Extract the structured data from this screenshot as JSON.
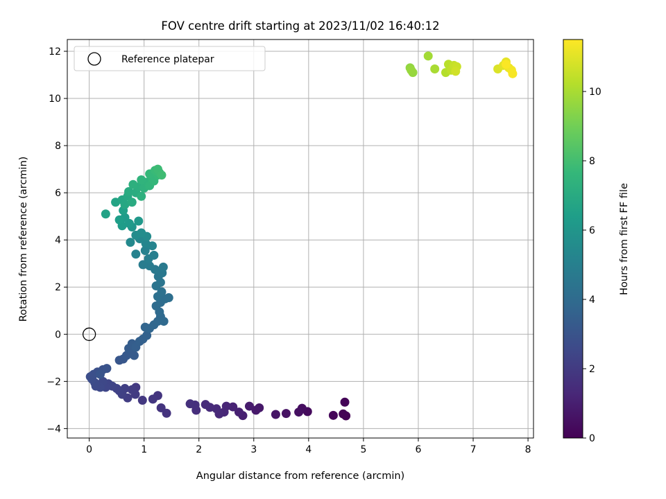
{
  "chart_data": {
    "type": "scatter",
    "title": "FOV centre drift starting at 2023/11/02 16:40:12",
    "xlabel": "Angular distance from reference (arcmin)",
    "ylabel": "Rotation from reference (arcmin)",
    "xlim": [
      -0.4,
      8.1
    ],
    "ylim": [
      -4.4,
      12.5
    ],
    "x_ticks": [
      0,
      1,
      2,
      3,
      4,
      5,
      6,
      7,
      8
    ],
    "y_ticks": [
      -4,
      -2,
      0,
      2,
      4,
      6,
      8,
      10,
      12
    ],
    "grid": true,
    "legend": {
      "location": "upper-left",
      "entries": [
        "Reference platepar"
      ]
    },
    "reference_point": {
      "x": 0,
      "y": 0
    },
    "colorbar": {
      "label": "Hours from first FF file",
      "colormap": "viridis",
      "range": [
        0,
        11.5
      ],
      "ticks": [
        0,
        2,
        4,
        6,
        8,
        10
      ]
    },
    "colormap_stops": [
      "#440154",
      "#482878",
      "#3e4989",
      "#31688e",
      "#26828e",
      "#1f9e89",
      "#35b779",
      "#6ece58",
      "#b5de2b",
      "#fde725"
    ],
    "points": [
      [
        4.68,
        -3.46,
        0.0
      ],
      [
        4.63,
        -3.38,
        0.05
      ],
      [
        4.66,
        -2.88,
        0.1
      ],
      [
        4.45,
        -3.44,
        0.18
      ],
      [
        3.98,
        -3.28,
        0.3
      ],
      [
        3.88,
        -3.14,
        0.38
      ],
      [
        3.82,
        -3.3,
        0.45
      ],
      [
        3.59,
        -3.36,
        0.55
      ],
      [
        3.4,
        -3.4,
        0.65
      ],
      [
        3.1,
        -3.12,
        0.75
      ],
      [
        3.04,
        -3.22,
        0.82
      ],
      [
        2.92,
        -3.05,
        0.9
      ],
      [
        2.8,
        -3.45,
        1.0
      ],
      [
        2.73,
        -3.3,
        1.05
      ],
      [
        2.62,
        -3.08,
        1.12
      ],
      [
        2.5,
        -3.05,
        1.2
      ],
      [
        2.46,
        -3.3,
        1.25
      ],
      [
        2.37,
        -3.38,
        1.3
      ],
      [
        2.32,
        -3.16,
        1.35
      ],
      [
        2.2,
        -3.1,
        1.4
      ],
      [
        2.12,
        -2.98,
        1.45
      ],
      [
        1.95,
        -3.22,
        1.5
      ],
      [
        1.93,
        -3.0,
        1.55
      ],
      [
        1.84,
        -2.95,
        1.6
      ],
      [
        1.41,
        -3.35,
        1.7
      ],
      [
        1.31,
        -3.12,
        1.75
      ],
      [
        1.25,
        -2.6,
        1.8
      ],
      [
        1.16,
        -2.75,
        1.85
      ],
      [
        0.97,
        -2.8,
        1.9
      ],
      [
        0.85,
        -2.25,
        1.95
      ],
      [
        0.84,
        -2.55,
        2.0
      ],
      [
        0.78,
        -2.35,
        2.05
      ],
      [
        0.7,
        -2.7,
        2.1
      ],
      [
        0.65,
        -2.3,
        2.15
      ],
      [
        0.6,
        -2.55,
        2.2
      ],
      [
        0.55,
        -2.4,
        2.25
      ],
      [
        0.5,
        -2.3,
        2.3
      ],
      [
        0.42,
        -2.2,
        2.35
      ],
      [
        0.35,
        -2.1,
        2.4
      ],
      [
        0.3,
        -2.25,
        2.45
      ],
      [
        0.25,
        -2.0,
        2.5
      ],
      [
        0.2,
        -2.25,
        2.55
      ],
      [
        0.12,
        -2.2,
        2.6
      ],
      [
        0.1,
        -2.05,
        2.65
      ],
      [
        0.05,
        -1.9,
        2.7
      ],
      [
        0.02,
        -1.8,
        2.75
      ],
      [
        0.08,
        -1.7,
        2.8
      ],
      [
        0.15,
        -1.6,
        2.85
      ],
      [
        0.25,
        -1.5,
        2.9
      ],
      [
        0.32,
        -1.45,
        2.95
      ],
      [
        0.2,
        -1.7,
        3.0
      ],
      [
        0.55,
        -1.1,
        3.1
      ],
      [
        0.62,
        -1.05,
        3.15
      ],
      [
        0.68,
        -0.9,
        3.2
      ],
      [
        0.75,
        -0.75,
        3.25
      ],
      [
        0.82,
        -0.9,
        3.3
      ],
      [
        0.72,
        -0.6,
        3.35
      ],
      [
        0.78,
        -0.4,
        3.4
      ],
      [
        0.85,
        -0.55,
        3.45
      ],
      [
        0.92,
        -0.3,
        3.5
      ],
      [
        0.98,
        -0.2,
        3.55
      ],
      [
        1.05,
        -0.05,
        3.6
      ],
      [
        1.02,
        0.3,
        3.7
      ],
      [
        1.1,
        0.25,
        3.75
      ],
      [
        1.18,
        0.4,
        3.8
      ],
      [
        1.25,
        0.55,
        3.85
      ],
      [
        1.3,
        0.75,
        3.9
      ],
      [
        1.36,
        0.55,
        3.95
      ],
      [
        1.28,
        0.95,
        4.0
      ],
      [
        1.22,
        1.2,
        4.05
      ],
      [
        1.3,
        1.35,
        4.1
      ],
      [
        1.38,
        1.5,
        4.15
      ],
      [
        1.45,
        1.55,
        4.2
      ],
      [
        1.25,
        1.6,
        4.25
      ],
      [
        1.32,
        1.8,
        4.3
      ],
      [
        1.22,
        2.05,
        4.4
      ],
      [
        1.3,
        2.2,
        4.45
      ],
      [
        1.26,
        2.45,
        4.5
      ],
      [
        1.33,
        2.6,
        4.6
      ],
      [
        1.2,
        2.75,
        4.65
      ],
      [
        1.35,
        2.85,
        4.7
      ],
      [
        1.1,
        2.9,
        4.75
      ],
      [
        0.98,
        2.95,
        4.8
      ],
      [
        1.08,
        3.2,
        4.9
      ],
      [
        1.18,
        3.35,
        4.95
      ],
      [
        1.02,
        3.55,
        5.05
      ],
      [
        0.85,
        3.4,
        5.1
      ],
      [
        1.15,
        3.75,
        5.2
      ],
      [
        1.03,
        3.85,
        5.25
      ],
      [
        0.92,
        4.05,
        5.35
      ],
      [
        0.75,
        3.9,
        5.45
      ],
      [
        1.05,
        4.15,
        5.5
      ],
      [
        0.85,
        4.2,
        5.55
      ],
      [
        0.95,
        4.3,
        5.6
      ],
      [
        0.78,
        4.55,
        6.0
      ],
      [
        0.9,
        4.8,
        6.1
      ],
      [
        0.73,
        4.7,
        6.2
      ],
      [
        0.65,
        4.95,
        6.25
      ],
      [
        0.6,
        4.6,
        6.3
      ],
      [
        0.55,
        4.85,
        6.4
      ],
      [
        0.62,
        5.25,
        6.5
      ],
      [
        0.3,
        5.1,
        6.6
      ],
      [
        0.48,
        5.6,
        6.7
      ],
      [
        0.6,
        5.7,
        6.8
      ],
      [
        0.65,
        5.5,
        6.85
      ],
      [
        0.7,
        5.85,
        6.9
      ],
      [
        0.78,
        5.6,
        7.0
      ],
      [
        0.72,
        6.05,
        7.05
      ],
      [
        0.85,
        6.0,
        7.1
      ],
      [
        0.9,
        6.25,
        7.2
      ],
      [
        0.8,
        6.35,
        7.25
      ],
      [
        0.95,
        5.85,
        7.3
      ],
      [
        1.0,
        6.2,
        7.35
      ],
      [
        1.05,
        6.45,
        7.4
      ],
      [
        0.95,
        6.55,
        7.45
      ],
      [
        1.1,
        6.3,
        7.5
      ],
      [
        1.15,
        6.6,
        7.55
      ],
      [
        1.18,
        6.5,
        7.6
      ],
      [
        1.1,
        6.8,
        7.65
      ],
      [
        1.25,
        6.75,
        7.7
      ],
      [
        1.2,
        6.95,
        7.75
      ],
      [
        1.28,
        6.85,
        7.8
      ],
      [
        1.25,
        7.0,
        7.85
      ],
      [
        1.32,
        6.75,
        7.9
      ],
      [
        5.85,
        11.3,
        9.6
      ],
      [
        5.9,
        11.1,
        9.65
      ],
      [
        5.87,
        11.2,
        9.7
      ],
      [
        6.18,
        11.8,
        9.9
      ],
      [
        6.3,
        11.25,
        10.0
      ],
      [
        6.5,
        11.1,
        10.2
      ],
      [
        6.55,
        11.45,
        10.3
      ],
      [
        6.6,
        11.2,
        10.4
      ],
      [
        6.65,
        11.4,
        10.5
      ],
      [
        6.7,
        11.35,
        10.6
      ],
      [
        6.68,
        11.15,
        10.7
      ],
      [
        7.45,
        11.25,
        10.9
      ],
      [
        7.55,
        11.4,
        11.0
      ],
      [
        7.6,
        11.55,
        11.1
      ],
      [
        7.65,
        11.3,
        11.2
      ],
      [
        7.7,
        11.2,
        11.3
      ],
      [
        7.72,
        11.05,
        11.4
      ],
      [
        7.6,
        11.45,
        11.45
      ]
    ]
  }
}
